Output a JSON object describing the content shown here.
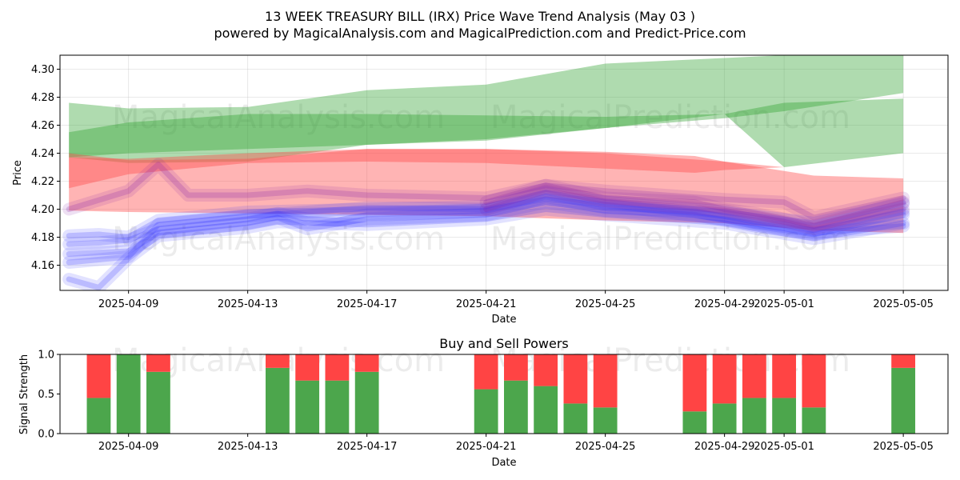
{
  "header": {
    "title": "13 WEEK TREASURY BILL (IRX) Price Wave Trend Analysis (May 03 )",
    "subtitle": "powered by MagicalAnalysis.com and MagicalPrediction.com and Predict-Price.com"
  },
  "watermarks": [
    "MagicalAnalysis.com",
    "MagicalPrediction.com"
  ],
  "colors": {
    "green_band": "#2ca02c",
    "red_band": "#ff4d4d",
    "blue_lines": "#3333ff",
    "purple_lines": "#8822aa",
    "buy_bar": "#4ca64c",
    "sell_bar": "#ff4444"
  },
  "chart_data": [
    {
      "type": "area",
      "xlabel": "Date",
      "ylabel": "Price",
      "ylim": [
        4.142,
        4.31
      ],
      "xlim": [
        "2025-04-06.7",
        "2025-05-06.5"
      ],
      "grid": true,
      "x_ticks": [
        "2025-04-09",
        "2025-04-13",
        "2025-04-17",
        "2025-04-21",
        "2025-04-25",
        "2025-04-29",
        "2025-05-01",
        "2025-05-05"
      ],
      "y_ticks": [
        "4.16",
        "4.18",
        "4.20",
        "4.22",
        "4.24",
        "4.26",
        "4.28",
        "4.30"
      ],
      "bands": [
        {
          "color": "green",
          "x": [
            "2025-04-07",
            "2025-04-09",
            "2025-04-13",
            "2025-04-17",
            "2025-04-21",
            "2025-04-25",
            "2025-04-29",
            "2025-05-01",
            "2025-05-05"
          ],
          "upper": [
            4.276,
            4.272,
            4.273,
            4.285,
            4.289,
            4.304,
            4.308,
            4.31,
            4.31
          ],
          "lower": [
            4.237,
            4.24,
            4.243,
            4.246,
            4.249,
            4.258,
            4.265,
            4.27,
            4.283
          ]
        },
        {
          "color": "green",
          "x": [
            "2025-04-07",
            "2025-04-09",
            "2025-04-13",
            "2025-04-17",
            "2025-04-21",
            "2025-04-25",
            "2025-04-29",
            "2025-05-01",
            "2025-05-05"
          ],
          "upper": [
            4.255,
            4.262,
            4.268,
            4.268,
            4.267,
            4.266,
            4.268,
            4.276,
            4.279
          ],
          "lower": [
            4.237,
            4.233,
            4.234,
            4.246,
            4.25,
            4.258,
            4.268,
            4.23,
            4.24
          ]
        },
        {
          "color": "red",
          "x": [
            "2025-04-07",
            "2025-04-09",
            "2025-04-13",
            "2025-04-17",
            "2025-04-21",
            "2025-04-25",
            "2025-04-29",
            "2025-05-02",
            "2025-05-05"
          ],
          "upper": [
            4.24,
            4.235,
            4.236,
            4.243,
            4.243,
            4.24,
            4.234,
            4.224,
            4.222
          ],
          "lower": [
            4.199,
            4.198,
            4.197,
            4.196,
            4.195,
            4.192,
            4.19,
            4.185,
            4.183
          ]
        },
        {
          "color": "red",
          "x": [
            "2025-04-07",
            "2025-04-09",
            "2025-04-13",
            "2025-04-17",
            "2025-04-21",
            "2025-04-25",
            "2025-04-28",
            "2025-04-29",
            "2025-05-01"
          ],
          "upper": [
            4.237,
            4.236,
            4.24,
            4.243,
            4.243,
            4.241,
            4.238,
            4.234,
            4.23
          ],
          "lower": [
            4.215,
            4.225,
            4.233,
            4.234,
            4.233,
            4.229,
            4.226,
            4.228,
            4.23
          ]
        }
      ],
      "series": [
        {
          "color": "blue",
          "x": [
            "2025-04-07",
            "2025-04-08",
            "2025-04-09",
            "2025-04-10",
            "2025-04-13",
            "2025-04-14",
            "2025-04-15",
            "2025-04-16",
            "2025-04-17",
            "2025-04-21",
            "2025-04-22",
            "2025-04-23",
            "2025-04-24",
            "2025-04-25",
            "2025-04-28",
            "2025-04-29",
            "2025-04-30",
            "2025-05-01",
            "2025-05-02",
            "2025-05-05"
          ],
          "values": [
            4.175,
            4.176,
            4.178,
            4.186,
            4.193,
            4.197,
            4.193,
            4.192,
            4.196,
            4.199,
            4.203,
            4.209,
            4.205,
            4.201,
            4.198,
            4.195,
            4.191,
            4.189,
            4.185,
            4.198
          ]
        },
        {
          "color": "blue",
          "x": [
            "2025-04-07",
            "2025-04-09",
            "2025-04-10",
            "2025-04-13",
            "2025-04-14",
            "2025-04-15",
            "2025-04-17",
            "2025-04-21",
            "2025-04-23",
            "2025-04-25",
            "2025-04-28",
            "2025-04-30",
            "2025-05-02",
            "2025-05-05"
          ],
          "values": [
            4.168,
            4.17,
            4.183,
            4.19,
            4.194,
            4.186,
            4.193,
            4.196,
            4.205,
            4.199,
            4.196,
            4.188,
            4.182,
            4.196
          ]
        },
        {
          "color": "blue",
          "x": [
            "2025-04-07",
            "2025-04-08",
            "2025-04-09",
            "2025-04-10",
            "2025-04-13",
            "2025-04-17",
            "2025-04-21",
            "2025-04-23",
            "2025-04-25",
            "2025-04-29",
            "2025-05-02",
            "2025-05-05"
          ],
          "values": [
            4.181,
            4.182,
            4.18,
            4.192,
            4.198,
            4.2,
            4.202,
            4.212,
            4.205,
            4.198,
            4.19,
            4.204
          ]
        },
        {
          "color": "blue",
          "x": [
            "2025-04-07",
            "2025-04-08",
            "2025-04-09",
            "2025-04-10",
            "2025-04-13",
            "2025-04-14",
            "2025-04-17",
            "2025-04-21",
            "2025-04-23",
            "2025-04-25",
            "2025-04-29",
            "2025-05-02",
            "2025-05-05"
          ],
          "values": [
            4.15,
            4.144,
            4.165,
            4.181,
            4.187,
            4.191,
            4.189,
            4.193,
            4.2,
            4.196,
            4.19,
            4.179,
            4.19
          ]
        },
        {
          "color": "blue",
          "x": [
            "2025-04-07",
            "2025-04-09",
            "2025-04-10",
            "2025-04-13",
            "2025-04-15",
            "2025-04-17",
            "2025-04-21",
            "2025-04-23",
            "2025-04-25",
            "2025-04-29",
            "2025-05-02",
            "2025-05-05"
          ],
          "values": [
            4.162,
            4.166,
            4.189,
            4.195,
            4.198,
            4.201,
            4.2,
            4.207,
            4.203,
            4.193,
            4.183,
            4.188
          ]
        },
        {
          "color": "purple",
          "x": [
            "2025-04-07",
            "2025-04-09",
            "2025-04-10",
            "2025-04-11",
            "2025-04-13",
            "2025-04-15",
            "2025-04-17",
            "2025-04-21",
            "2025-04-23",
            "2025-04-25",
            "2025-04-29",
            "2025-05-01",
            "2025-05-02",
            "2025-05-05"
          ],
          "values": [
            4.2,
            4.213,
            4.232,
            4.21,
            4.21,
            4.213,
            4.21,
            4.208,
            4.217,
            4.213,
            4.207,
            4.205,
            4.194,
            4.208
          ]
        },
        {
          "color": "purple",
          "x": [
            "2025-04-21",
            "2025-04-23",
            "2025-04-25",
            "2025-04-28",
            "2025-04-29",
            "2025-04-30",
            "2025-05-01",
            "2025-05-02",
            "2025-05-05"
          ],
          "values": [
            4.205,
            4.217,
            4.208,
            4.205,
            4.2,
            4.197,
            4.193,
            4.188,
            4.205
          ]
        },
        {
          "color": "purple",
          "x": [
            "2025-04-21",
            "2025-04-23",
            "2025-04-25",
            "2025-04-29",
            "2025-05-01",
            "2025-05-02",
            "2025-05-05"
          ],
          "values": [
            4.2,
            4.213,
            4.206,
            4.199,
            4.191,
            4.186,
            4.2
          ]
        }
      ]
    },
    {
      "type": "bar",
      "title": "Buy and Sell Powers",
      "xlabel": "Date",
      "ylabel": "Signal Strength",
      "ylim": [
        0,
        1.0
      ],
      "y_ticks": [
        "0.0",
        "0.5",
        "1.0"
      ],
      "x_ticks": [
        "2025-04-09",
        "2025-04-13",
        "2025-04-17",
        "2025-04-21",
        "2025-04-25",
        "2025-04-29",
        "2025-05-01",
        "2025-05-05"
      ],
      "categories": [
        "2025-04-08",
        "2025-04-09",
        "2025-04-10",
        "2025-04-14",
        "2025-04-15",
        "2025-04-16",
        "2025-04-17",
        "2025-04-21",
        "2025-04-22",
        "2025-04-23",
        "2025-04-24",
        "2025-04-25",
        "2025-04-28",
        "2025-04-29",
        "2025-04-30",
        "2025-05-01",
        "2025-05-02",
        "2025-05-05"
      ],
      "series": [
        {
          "name": "Buy",
          "color": "green",
          "values": [
            0.45,
            1.0,
            0.78,
            0.83,
            0.67,
            0.67,
            0.78,
            0.56,
            0.67,
            0.6,
            0.38,
            0.33,
            0.28,
            0.38,
            0.45,
            0.45,
            0.33,
            0.83
          ]
        },
        {
          "name": "Sell",
          "color": "red",
          "values": [
            0.55,
            0.0,
            0.22,
            0.17,
            0.33,
            0.33,
            0.22,
            0.44,
            0.33,
            0.4,
            0.62,
            0.67,
            0.72,
            0.62,
            0.55,
            0.55,
            0.67,
            0.17
          ]
        }
      ]
    }
  ]
}
